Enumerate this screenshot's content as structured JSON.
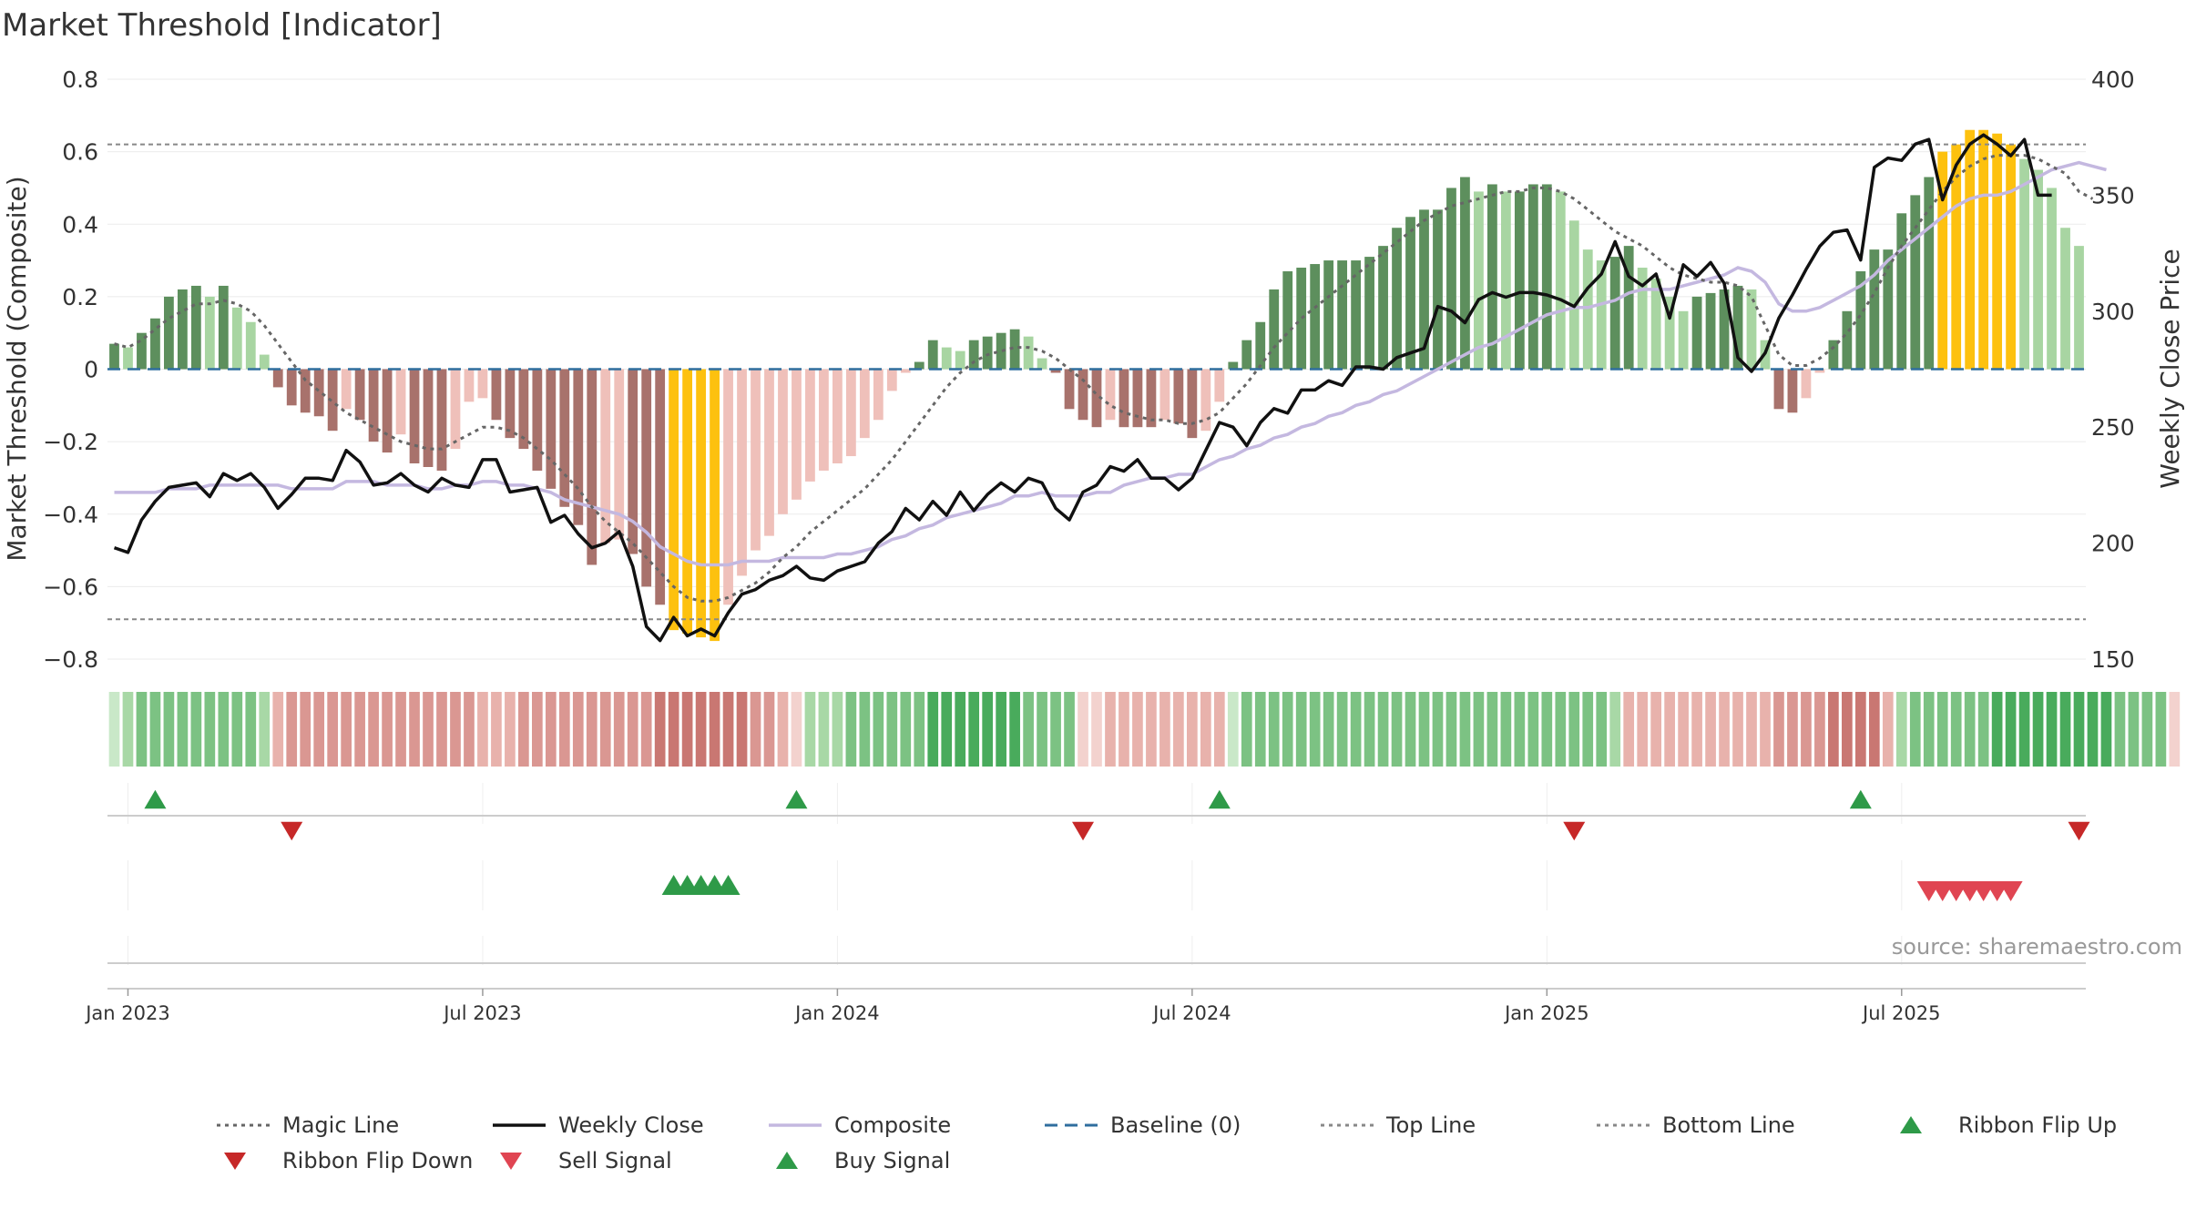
{
  "title": "Market Threshold [Indicator]",
  "source_text": "source: sharemaestro.com",
  "chart_data": {
    "type": "bar",
    "left_axis": {
      "label": "Market Threshold (Composite)",
      "range": [
        -0.8,
        0.8
      ],
      "ticks": [
        0.8,
        0.6,
        0.4,
        0.2,
        0,
        -0.2,
        -0.4,
        -0.6,
        -0.8
      ],
      "tick_labels": [
        "0.8",
        "0.6",
        "0.4",
        "0.2",
        "0",
        "−0.2",
        "−0.4",
        "−0.6",
        "−0.8"
      ]
    },
    "right_axis": {
      "label": "Weekly Close Price",
      "range": [
        150,
        400
      ],
      "ticks": [
        400,
        350,
        300,
        250,
        200,
        150
      ],
      "tick_labels": [
        "400",
        "350",
        "300",
        "250",
        "200",
        "150"
      ]
    },
    "x_axis": {
      "tick_labels": [
        "Jan 2023",
        "Jul 2023",
        "Jan 2024",
        "Jul 2024",
        "Jan 2025",
        "Jul 2025"
      ],
      "tick_weeks": [
        1,
        27,
        53,
        79,
        105,
        131
      ]
    },
    "top_line": 0.62,
    "bottom_line": -0.69,
    "colors": {
      "dark_green": "#5d8f5d",
      "light_green": "#a8d5a2",
      "dark_red": "#a8726c",
      "light_red": "#efc0ba",
      "extreme": "#fdc10f",
      "close": "#111111",
      "composite": "#c4b8e0",
      "magic": "#666666",
      "baseline": "#2f6e9e",
      "signal_up": "#2e9a48",
      "signal_down": "#d62c36"
    },
    "bars": [
      0.07,
      0.06,
      0.1,
      0.14,
      0.2,
      0.22,
      0.23,
      0.2,
      0.23,
      0.17,
      0.13,
      0.04,
      -0.05,
      -0.1,
      -0.12,
      -0.13,
      -0.17,
      -0.11,
      -0.14,
      -0.2,
      -0.23,
      -0.18,
      -0.26,
      -0.27,
      -0.28,
      -0.22,
      -0.09,
      -0.08,
      -0.14,
      -0.19,
      -0.22,
      -0.28,
      -0.33,
      -0.38,
      -0.43,
      -0.54,
      -0.48,
      -0.47,
      -0.51,
      -0.6,
      -0.65,
      -0.72,
      -0.73,
      -0.74,
      -0.75,
      -0.65,
      -0.57,
      -0.5,
      -0.46,
      -0.4,
      -0.36,
      -0.31,
      -0.28,
      -0.26,
      -0.24,
      -0.19,
      -0.14,
      -0.06,
      -0.01,
      0.02,
      0.08,
      0.06,
      0.05,
      0.08,
      0.09,
      0.1,
      0.11,
      0.09,
      0.03,
      -0.01,
      -0.11,
      -0.14,
      -0.16,
      -0.14,
      -0.16,
      -0.16,
      -0.16,
      -0.14,
      -0.15,
      -0.19,
      -0.17,
      -0.09,
      0.02,
      0.08,
      0.13,
      0.22,
      0.27,
      0.28,
      0.29,
      0.3,
      0.3,
      0.3,
      0.31,
      0.34,
      0.39,
      0.42,
      0.44,
      0.44,
      0.5,
      0.53,
      0.49,
      0.51,
      0.49,
      0.49,
      0.51,
      0.51,
      0.49,
      0.41,
      0.33,
      0.3,
      0.31,
      0.34,
      0.28,
      0.25,
      0.2,
      0.16,
      0.2,
      0.21,
      0.22,
      0.23,
      0.22,
      0.08,
      -0.11,
      -0.12,
      -0.08,
      -0.01,
      0.08,
      0.16,
      0.27,
      0.33,
      0.33,
      0.43,
      0.48,
      0.53,
      0.6,
      0.62,
      0.66,
      0.66,
      0.65,
      0.62,
      0.58,
      0.55,
      0.5,
      0.39,
      0.34
    ],
    "weekly_close": [
      198,
      196,
      210,
      218,
      224,
      225,
      226,
      220,
      230,
      227,
      230,
      224,
      215,
      221,
      228,
      228,
      227,
      240,
      235,
      225,
      226,
      230,
      225,
      222,
      228,
      225,
      224,
      236,
      236,
      222,
      223,
      224,
      209,
      212,
      204,
      198,
      200,
      205,
      190,
      164,
      158,
      168,
      160,
      163,
      160,
      170,
      178,
      180,
      184,
      186,
      190,
      185,
      184,
      188,
      190,
      192,
      200,
      205,
      215,
      210,
      218,
      212,
      222,
      214,
      221,
      226,
      222,
      228,
      226,
      215,
      210,
      222,
      225,
      233,
      231,
      236,
      228,
      228,
      223,
      228,
      240,
      252,
      250,
      242,
      252,
      258,
      256,
      266,
      266,
      270,
      268,
      276,
      276,
      275,
      280,
      282,
      284,
      302,
      300,
      295,
      305,
      308,
      306,
      308,
      308,
      307,
      305,
      302,
      310,
      316,
      330,
      315,
      311,
      316,
      297,
      320,
      315,
      321,
      312,
      280,
      274,
      282,
      297,
      307,
      318,
      328,
      334,
      335,
      322,
      362,
      366,
      365,
      372,
      374,
      348,
      363,
      372,
      376,
      372,
      367,
      374,
      350,
      350
    ],
    "composite": [
      -0.34,
      -0.34,
      -0.34,
      -0.34,
      -0.33,
      -0.33,
      -0.33,
      -0.32,
      -0.32,
      -0.32,
      -0.32,
      -0.32,
      -0.32,
      -0.33,
      -0.33,
      -0.33,
      -0.33,
      -0.31,
      -0.31,
      -0.31,
      -0.32,
      -0.32,
      -0.32,
      -0.33,
      -0.33,
      -0.32,
      -0.32,
      -0.31,
      -0.31,
      -0.32,
      -0.32,
      -0.33,
      -0.34,
      -0.36,
      -0.37,
      -0.38,
      -0.39,
      -0.4,
      -0.42,
      -0.45,
      -0.49,
      -0.51,
      -0.53,
      -0.54,
      -0.54,
      -0.54,
      -0.53,
      -0.53,
      -0.53,
      -0.52,
      -0.52,
      -0.52,
      -0.52,
      -0.51,
      -0.51,
      -0.5,
      -0.49,
      -0.47,
      -0.46,
      -0.44,
      -0.43,
      -0.41,
      -0.4,
      -0.39,
      -0.38,
      -0.37,
      -0.35,
      -0.35,
      -0.34,
      -0.35,
      -0.35,
      -0.35,
      -0.34,
      -0.34,
      -0.32,
      -0.31,
      -0.3,
      -0.3,
      -0.29,
      -0.29,
      -0.27,
      -0.25,
      -0.24,
      -0.22,
      -0.21,
      -0.19,
      -0.18,
      -0.16,
      -0.15,
      -0.13,
      -0.12,
      -0.1,
      -0.09,
      -0.07,
      -0.06,
      -0.04,
      -0.02,
      0.0,
      0.02,
      0.04,
      0.06,
      0.07,
      0.09,
      0.11,
      0.13,
      0.15,
      0.16,
      0.17,
      0.17,
      0.18,
      0.19,
      0.21,
      0.22,
      0.22,
      0.22,
      0.23,
      0.24,
      0.25,
      0.26,
      0.28,
      0.27,
      0.24,
      0.18,
      0.16,
      0.16,
      0.17,
      0.19,
      0.21,
      0.23,
      0.26,
      0.3,
      0.33,
      0.36,
      0.39,
      0.42,
      0.45,
      0.47,
      0.48,
      0.48,
      0.49,
      0.51,
      0.53,
      0.55,
      0.56,
      0.57,
      0.56,
      0.55
    ],
    "magic_line": [
      0.07,
      0.06,
      0.08,
      0.11,
      0.14,
      0.16,
      0.18,
      0.18,
      0.19,
      0.18,
      0.16,
      0.12,
      0.07,
      0.02,
      -0.03,
      -0.06,
      -0.09,
      -0.12,
      -0.14,
      -0.16,
      -0.18,
      -0.2,
      -0.21,
      -0.22,
      -0.22,
      -0.2,
      -0.18,
      -0.16,
      -0.16,
      -0.17,
      -0.19,
      -0.22,
      -0.25,
      -0.29,
      -0.33,
      -0.38,
      -0.42,
      -0.45,
      -0.48,
      -0.52,
      -0.56,
      -0.6,
      -0.63,
      -0.64,
      -0.64,
      -0.63,
      -0.61,
      -0.59,
      -0.56,
      -0.52,
      -0.49,
      -0.45,
      -0.42,
      -0.39,
      -0.36,
      -0.33,
      -0.29,
      -0.25,
      -0.2,
      -0.15,
      -0.1,
      -0.05,
      -0.01,
      0.02,
      0.04,
      0.05,
      0.06,
      0.06,
      0.05,
      0.03,
      0.0,
      -0.03,
      -0.07,
      -0.1,
      -0.12,
      -0.13,
      -0.14,
      -0.14,
      -0.15,
      -0.15,
      -0.14,
      -0.12,
      -0.08,
      -0.04,
      0.01,
      0.06,
      0.1,
      0.14,
      0.17,
      0.2,
      0.23,
      0.26,
      0.29,
      0.32,
      0.35,
      0.38,
      0.41,
      0.43,
      0.45,
      0.46,
      0.47,
      0.48,
      0.49,
      0.49,
      0.5,
      0.5,
      0.49,
      0.47,
      0.44,
      0.41,
      0.38,
      0.36,
      0.34,
      0.31,
      0.28,
      0.26,
      0.25,
      0.24,
      0.24,
      0.23,
      0.2,
      0.12,
      0.04,
      0.01,
      0.01,
      0.03,
      0.06,
      0.1,
      0.15,
      0.21,
      0.28,
      0.34,
      0.39,
      0.44,
      0.49,
      0.53,
      0.56,
      0.58,
      0.59,
      0.59,
      0.59,
      0.58,
      0.56,
      0.54,
      0.49,
      0.47
    ],
    "ribbon_level": [
      1,
      2,
      3,
      3,
      3,
      3,
      3,
      3,
      3,
      3,
      3,
      2,
      -2,
      -3,
      -3,
      -3,
      -3,
      -3,
      -3,
      -3,
      -3,
      -3,
      -3,
      -3,
      -3,
      -3,
      -3,
      -2,
      -2,
      -2,
      -3,
      -3,
      -3,
      -3,
      -3,
      -3,
      -3,
      -3,
      -3,
      -3,
      -4,
      -4,
      -4,
      -4,
      -4,
      -4,
      -4,
      -3,
      -3,
      -2,
      -1,
      2,
      2,
      2,
      3,
      3,
      3,
      3,
      3,
      3,
      4,
      4,
      4,
      4,
      4,
      4,
      4,
      3,
      3,
      3,
      3,
      -1,
      -1,
      -2,
      -2,
      -2,
      -2,
      -2,
      -2,
      -2,
      -2,
      -2,
      1,
      3,
      3,
      3,
      3,
      3,
      3,
      3,
      3,
      3,
      3,
      3,
      3,
      3,
      3,
      3,
      3,
      3,
      3,
      3,
      3,
      3,
      3,
      3,
      3,
      3,
      3,
      3,
      2,
      -2,
      -2,
      -2,
      -2,
      -2,
      -2,
      -2,
      -2,
      -2,
      -2,
      -2,
      -3,
      -3,
      -3,
      -3,
      -4,
      -4,
      -4,
      -4,
      -2,
      2,
      3,
      3,
      3,
      3,
      3,
      3,
      4,
      4,
      4,
      4,
      4,
      4,
      4,
      4,
      4,
      3,
      3,
      3,
      3,
      -1
    ],
    "ribbon_flip_up_weeks": [
      3,
      50,
      81,
      128
    ],
    "ribbon_flip_down_weeks": [
      13,
      71,
      107,
      144
    ],
    "buy_signal_weeks": [
      41,
      42,
      43,
      44,
      45
    ],
    "sell_signal_weeks": [
      133,
      134,
      135,
      136,
      137,
      138,
      139
    ]
  },
  "legend": [
    {
      "label": "Magic Line",
      "kind": "dotted",
      "color": "#666666"
    },
    {
      "label": "Weekly Close",
      "kind": "solid",
      "color": "#111111"
    },
    {
      "label": "Composite",
      "kind": "solid",
      "color": "#c4b8e0"
    },
    {
      "label": "Baseline (0)",
      "kind": "dashed",
      "color": "#2f6e9e"
    },
    {
      "label": "Top Line",
      "kind": "dotted",
      "color": "#888888"
    },
    {
      "label": "Bottom Line",
      "kind": "dotted",
      "color": "#888888"
    },
    {
      "label": "Ribbon Flip Up",
      "kind": "tri-up",
      "color": "#2e9a48"
    },
    {
      "label": "Ribbon Flip Down",
      "kind": "tri-down",
      "color": "#c62828"
    },
    {
      "label": "Sell Signal",
      "kind": "tri-down",
      "color": "#e04552"
    },
    {
      "label": "Buy Signal",
      "kind": "tri-up",
      "color": "#2e9a48"
    }
  ]
}
